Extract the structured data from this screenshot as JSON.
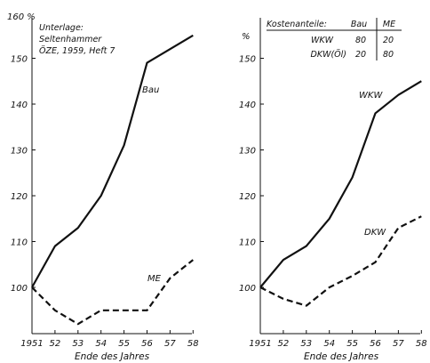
{
  "colors": {
    "ink": "#111111",
    "background": "#ffffff"
  },
  "chart_data": [
    {
      "type": "line",
      "y_unit_label": "160 %",
      "xlabel": "Ende des Jahres",
      "ylabel": "",
      "x": [
        "1951",
        "52",
        "53",
        "54",
        "55",
        "56",
        "57",
        "58"
      ],
      "yticks": [
        "100",
        "110",
        "120",
        "130",
        "140",
        "150"
      ],
      "ylim": [
        100,
        160
      ],
      "grid": false,
      "source_note": [
        "Unterlage:",
        "Seltenhammer",
        "ÖZE, 1959, Heft 7"
      ],
      "series": [
        {
          "name": "Bau",
          "style": "solid",
          "color": "#111111",
          "values": [
            100,
            109,
            113,
            120,
            131,
            149,
            152,
            155
          ]
        },
        {
          "name": "ME",
          "style": "dashed",
          "color": "#111111",
          "values": [
            100,
            95,
            92,
            95,
            95,
            95,
            102,
            106
          ]
        }
      ]
    },
    {
      "type": "line",
      "y_unit_label": "%",
      "xlabel": "Ende des Jahres",
      "ylabel": "",
      "x": [
        "1951",
        "52",
        "53",
        "54",
        "55",
        "56",
        "57",
        "58"
      ],
      "yticks": [
        "100",
        "110",
        "120",
        "130",
        "140",
        "150"
      ],
      "ylim": [
        100,
        160
      ],
      "grid": false,
      "cost_table": {
        "title": "Kostenanteile:",
        "columns": [
          "Bau",
          "ME"
        ],
        "rows": [
          {
            "label": "WKW",
            "values": [
              "80",
              "20"
            ]
          },
          {
            "label": "DKW(Öl)",
            "values": [
              "20",
              "80"
            ]
          }
        ]
      },
      "series": [
        {
          "name": "WKW",
          "style": "solid",
          "color": "#111111",
          "values": [
            100,
            106,
            109,
            115,
            124,
            138,
            142,
            145
          ]
        },
        {
          "name": "DKW",
          "style": "dashed",
          "color": "#111111",
          "values": [
            100,
            97.5,
            96,
            100,
            102.5,
            105.5,
            113,
            115.5
          ]
        }
      ]
    }
  ]
}
